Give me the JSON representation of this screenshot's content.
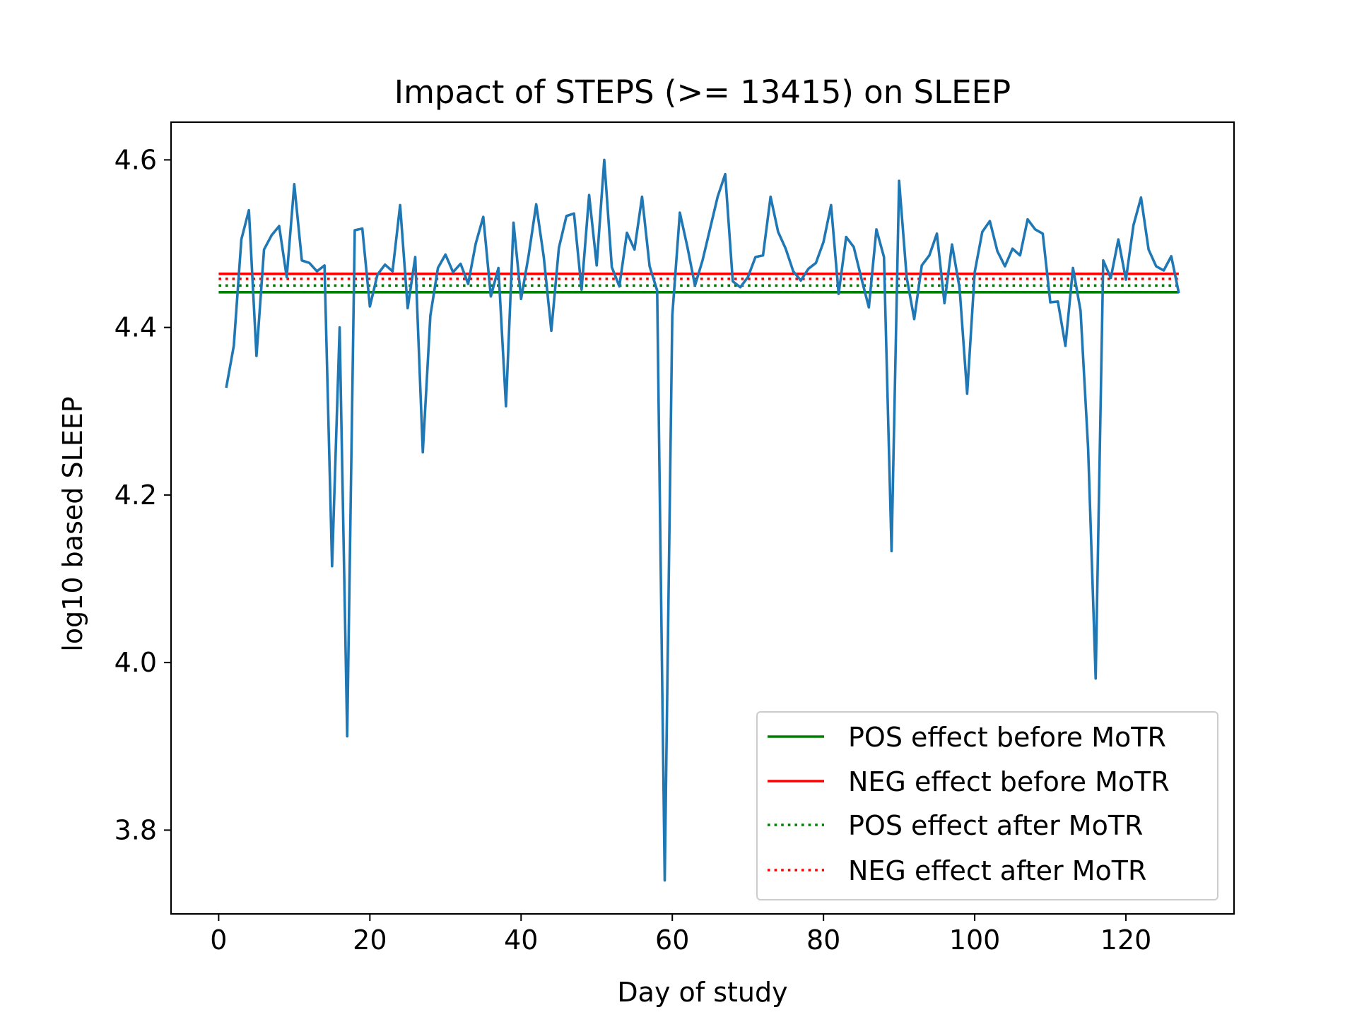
{
  "chart_data": {
    "type": "line",
    "title": "Impact of STEPS (>= 13415) on SLEEP",
    "xlabel": "Day of study",
    "ylabel": "log10 based SLEEP",
    "xlim": [
      -6.3,
      134.3
    ],
    "ylim": [
      3.7,
      4.645
    ],
    "x_ticks": [
      0,
      20,
      40,
      60,
      80,
      100,
      120
    ],
    "y_ticks": [
      3.8,
      4.0,
      4.2,
      4.4,
      4.6
    ],
    "x_tick_labels": [
      "0",
      "20",
      "40",
      "60",
      "80",
      "100",
      "120"
    ],
    "y_tick_labels": [
      "3.8",
      "4.0",
      "4.2",
      "4.4",
      "4.6"
    ],
    "grid": false,
    "legend_position": "lower-right",
    "series": [
      {
        "color": "#1f77b4",
        "style": "solid",
        "x": [
          1,
          2,
          3,
          4,
          5,
          6,
          7,
          8,
          9,
          10,
          11,
          12,
          13,
          14,
          15,
          16,
          17,
          18,
          19,
          20,
          21,
          22,
          23,
          24,
          25,
          26,
          27,
          28,
          29,
          30,
          31,
          32,
          33,
          34,
          35,
          36,
          37,
          38,
          39,
          40,
          41,
          42,
          43,
          44,
          45,
          46,
          47,
          48,
          49,
          50,
          51,
          52,
          53,
          54,
          55,
          56,
          57,
          58,
          59,
          60,
          61,
          62,
          63,
          64,
          65,
          66,
          67,
          68,
          69,
          70,
          71,
          72,
          73,
          74,
          75,
          76,
          77,
          78,
          79,
          80,
          81,
          82,
          83,
          84,
          85,
          86,
          87,
          88,
          89,
          90,
          91,
          92,
          93,
          94,
          95,
          96,
          97,
          98,
          99,
          100,
          101,
          102,
          103,
          104,
          105,
          106,
          107,
          108,
          109,
          110,
          111,
          112,
          113,
          114,
          115,
          116,
          117,
          118,
          119,
          120,
          121,
          122,
          123,
          124,
          125,
          126,
          127
        ],
        "values": [
          4.328,
          4.378,
          4.505,
          4.54,
          4.366,
          4.493,
          4.51,
          4.521,
          4.46,
          4.571,
          4.48,
          4.477,
          4.467,
          4.474,
          4.115,
          4.4,
          3.912,
          4.516,
          4.518,
          4.425,
          4.463,
          4.475,
          4.467,
          4.546,
          4.423,
          4.484,
          4.251,
          4.414,
          4.471,
          4.487,
          4.466,
          4.476,
          4.452,
          4.5,
          4.532,
          4.437,
          4.471,
          4.306,
          4.525,
          4.434,
          4.486,
          4.547,
          4.484,
          4.396,
          4.495,
          4.533,
          4.536,
          4.445,
          4.558,
          4.474,
          4.6,
          4.472,
          4.449,
          4.513,
          4.493,
          4.556,
          4.473,
          4.444,
          3.74,
          4.414,
          4.537,
          4.496,
          4.45,
          4.48,
          4.518,
          4.556,
          4.583,
          4.455,
          4.448,
          4.46,
          4.484,
          4.486,
          4.556,
          4.514,
          4.494,
          4.467,
          4.456,
          4.47,
          4.477,
          4.502,
          4.546,
          4.44,
          4.508,
          4.496,
          4.459,
          4.424,
          4.517,
          4.484,
          4.133,
          4.575,
          4.46,
          4.41,
          4.474,
          4.486,
          4.512,
          4.429,
          4.499,
          4.447,
          4.321,
          4.466,
          4.514,
          4.527,
          4.491,
          4.473,
          4.494,
          4.486,
          4.529,
          4.517,
          4.512,
          4.43,
          4.431,
          4.378,
          4.471,
          4.42,
          4.256,
          3.981,
          4.48,
          4.459,
          4.505,
          4.457,
          4.522,
          4.555,
          4.493,
          4.473,
          4.468,
          4.485,
          4.441
        ]
      },
      {
        "name": "POS effect before MoTR",
        "color": "#008000",
        "style": "solid",
        "x": [
          0,
          127
        ],
        "values": [
          4.442,
          4.442
        ]
      },
      {
        "name": "NEG effect before MoTR",
        "color": "#ff0000",
        "style": "solid",
        "x": [
          0,
          127
        ],
        "values": [
          4.464,
          4.464
        ]
      },
      {
        "name": "POS effect after MoTR",
        "color": "#008000",
        "style": "dotted",
        "x": [
          0,
          127
        ],
        "values": [
          4.45,
          4.45
        ]
      },
      {
        "name": "NEG effect after MoTR",
        "color": "#ff0000",
        "style": "dotted",
        "x": [
          0,
          127
        ],
        "values": [
          4.458,
          4.458
        ]
      }
    ]
  }
}
